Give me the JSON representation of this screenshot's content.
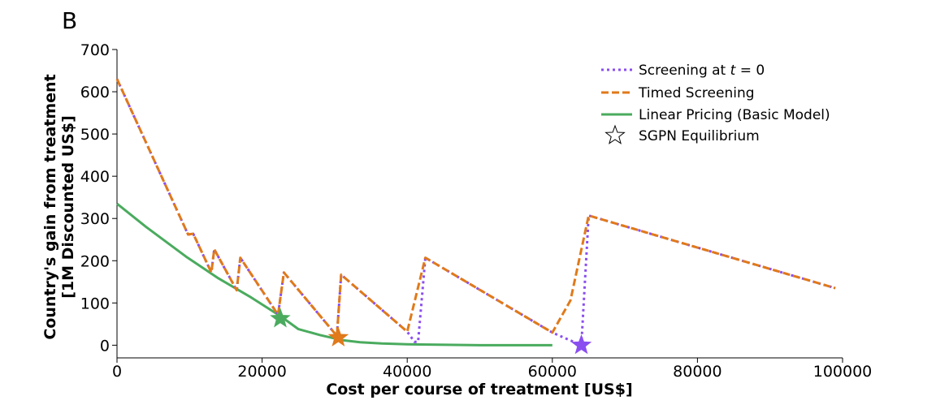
{
  "panel_label": "B",
  "chart_data": {
    "type": "line",
    "xlabel": "Cost per course of treatment [US$]",
    "ylabel_line1": "Country's gain from treatment",
    "ylabel_line2": "[1M Discounted US$]",
    "xlim": [
      0,
      100000
    ],
    "ylim": [
      -30,
      700
    ],
    "xticks": [
      0,
      20000,
      40000,
      60000,
      80000,
      100000
    ],
    "yticks": [
      0,
      100,
      200,
      300,
      400,
      500,
      600,
      700
    ],
    "grid": false,
    "legend_position": "top-right",
    "series": [
      {
        "name": "Screening at t = 0",
        "legend_prefix": "Screening at ",
        "legend_var": "t",
        "legend_suffix": " = 0",
        "color": "#8a4ef0",
        "style": "dotted",
        "x": [
          0,
          9800,
          10500,
          13000,
          13400,
          16500,
          17000,
          22200,
          23000,
          30300,
          30900,
          40000,
          41000,
          41500,
          42500,
          60000,
          64000,
          65000,
          99000
        ],
        "y": [
          630,
          262,
          264,
          172,
          227,
          130,
          207,
          72,
          172,
          22,
          167,
          32,
          8,
          8,
          207,
          30,
          0,
          307,
          135
        ]
      },
      {
        "name": "Timed Screening",
        "color": "#e07a1a",
        "style": "dashed",
        "x": [
          0,
          9800,
          10500,
          13000,
          13400,
          16500,
          17000,
          22200,
          23000,
          30300,
          30900,
          40000,
          42500,
          60000,
          62500,
          65000,
          99000
        ],
        "y": [
          630,
          262,
          264,
          172,
          227,
          130,
          207,
          72,
          172,
          22,
          167,
          32,
          207,
          30,
          106,
          307,
          135
        ]
      },
      {
        "name": "Linear Pricing (Basic Model)",
        "color": "#4aab5e",
        "style": "solid",
        "x": [
          0,
          4000,
          9500,
          14000,
          18500,
          22600,
          25000,
          28000,
          31000,
          33500,
          36500,
          40000,
          50000,
          60000
        ],
        "y": [
          335,
          280,
          210,
          158,
          113,
          68,
          38,
          24,
          12,
          7,
          4,
          2,
          0,
          0
        ]
      }
    ],
    "equilibria": {
      "name": "SGPN Equilibrium",
      "points": [
        {
          "x": 22500,
          "y": 63,
          "color": "#4aab5e"
        },
        {
          "x": 30500,
          "y": 18,
          "color": "#e07a1a"
        },
        {
          "x": 64000,
          "y": 0,
          "color": "#8a4ef0"
        }
      ]
    }
  }
}
